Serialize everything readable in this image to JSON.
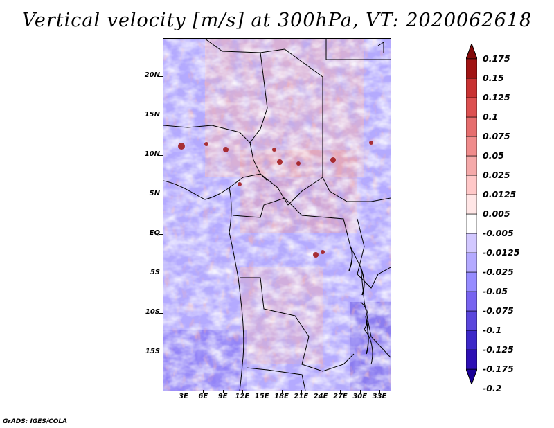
{
  "title": "Vertical velocity [m/s] at 300hPa, VT: 2020062618",
  "credit": "GrADS: IGES/COLA",
  "colors": {
    "band_colors": [
      "#190096",
      "#2d0fb4",
      "#3c28c8",
      "#5a46dc",
      "#7864f0",
      "#968cff",
      "#b4aaff",
      "#d2c8ff",
      "#ffffff",
      "#ffe6e6",
      "#ffc8c8",
      "#f5aaaa",
      "#f08c8c",
      "#e66e6e",
      "#dc5050",
      "#c83232",
      "#a01414",
      "#820a0a"
    ],
    "coast": "#000000"
  },
  "map": {
    "y_labels": [
      {
        "label": "20N"
      },
      {
        "label": "15N"
      },
      {
        "label": "10N"
      },
      {
        "label": "5N"
      },
      {
        "label": "EQ"
      },
      {
        "label": "5S"
      },
      {
        "label": "10S"
      },
      {
        "label": "15S"
      }
    ],
    "x_labels": [
      "3E",
      "6E",
      "9E",
      "12E",
      "15E",
      "18E",
      "21E",
      "24E",
      "27E",
      "30E",
      "33E"
    ]
  },
  "colorbar": {
    "labels": [
      "0.175",
      "0.15",
      "0.125",
      "0.1",
      "0.075",
      "0.05",
      "0.025",
      "0.0125",
      "0.005",
      "-0.005",
      "-0.0125",
      "-0.025",
      "-0.05",
      "-0.075",
      "-0.1",
      "-0.125",
      "-0.175",
      "-0.2"
    ]
  }
}
